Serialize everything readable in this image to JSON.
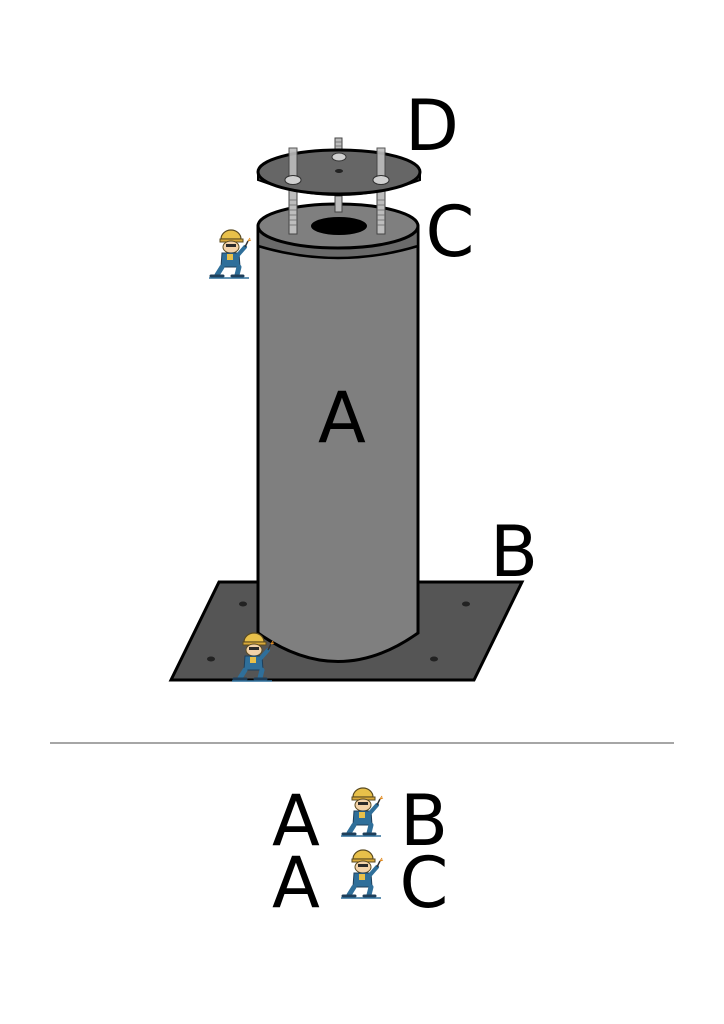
{
  "labels": {
    "part_a": "A",
    "part_b": "B",
    "part_c": "C",
    "part_d": "D"
  },
  "legend": [
    {
      "from": "A",
      "to": "B"
    },
    {
      "from": "A",
      "to": "C"
    }
  ],
  "colors": {
    "base_plate": "#555555",
    "cylinder": "#7f7f7f",
    "cylinder_rim": "#6a6a6a",
    "cap_plate": "#666666",
    "outline": "#000000",
    "divider": "#888888"
  },
  "icons": [
    "welder-icon"
  ]
}
